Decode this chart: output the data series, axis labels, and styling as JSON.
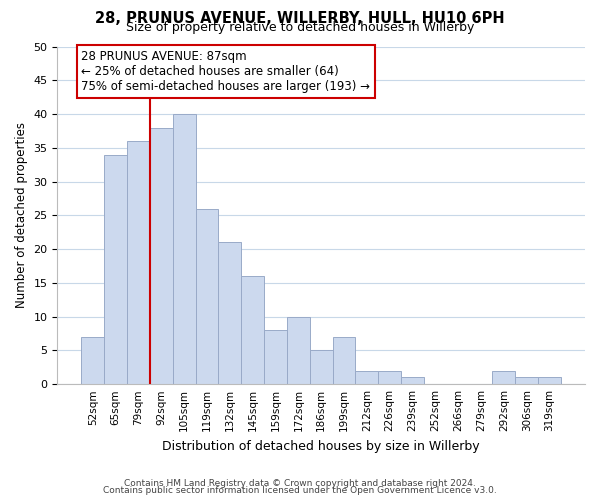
{
  "title": "28, PRUNUS AVENUE, WILLERBY, HULL, HU10 6PH",
  "subtitle": "Size of property relative to detached houses in Willerby",
  "xlabel": "Distribution of detached houses by size in Willerby",
  "ylabel": "Number of detached properties",
  "categories": [
    "52sqm",
    "65sqm",
    "79sqm",
    "92sqm",
    "105sqm",
    "119sqm",
    "132sqm",
    "145sqm",
    "159sqm",
    "172sqm",
    "186sqm",
    "199sqm",
    "212sqm",
    "226sqm",
    "239sqm",
    "252sqm",
    "266sqm",
    "279sqm",
    "292sqm",
    "306sqm",
    "319sqm"
  ],
  "values": [
    7,
    34,
    36,
    38,
    40,
    26,
    21,
    16,
    8,
    10,
    5,
    7,
    2,
    2,
    1,
    0,
    0,
    0,
    2,
    1,
    1
  ],
  "bar_color": "#ccd9ee",
  "bar_edge_color": "#99aac8",
  "vline_color": "#cc0000",
  "annotation_title": "28 PRUNUS AVENUE: 87sqm",
  "annotation_line1": "← 25% of detached houses are smaller (64)",
  "annotation_line2": "75% of semi-detached houses are larger (193) →",
  "annotation_box_color": "#ffffff",
  "annotation_box_edge": "#cc0000",
  "ylim": [
    0,
    50
  ],
  "yticks": [
    0,
    5,
    10,
    15,
    20,
    25,
    30,
    35,
    40,
    45,
    50
  ],
  "footnote1": "Contains HM Land Registry data © Crown copyright and database right 2024.",
  "footnote2": "Contains public sector information licensed under the Open Government Licence v3.0.",
  "bg_color": "#ffffff",
  "grid_color": "#c8d8e8"
}
